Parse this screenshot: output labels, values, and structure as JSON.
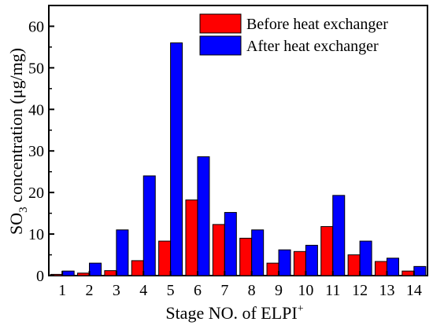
{
  "chart_data": {
    "type": "bar",
    "categories": [
      "1",
      "2",
      "3",
      "4",
      "5",
      "6",
      "7",
      "8",
      "9",
      "10",
      "11",
      "12",
      "13",
      "14"
    ],
    "series": [
      {
        "name": "Before heat exchanger",
        "color": "#ff0000",
        "values": [
          0.3,
          0.6,
          1.2,
          3.6,
          8.3,
          18.2,
          12.3,
          9.0,
          3.0,
          5.8,
          11.8,
          5.0,
          3.4,
          1.1
        ]
      },
      {
        "name": "After heat exchanger",
        "color": "#0000ff",
        "values": [
          1.1,
          3.0,
          11.0,
          24.0,
          56.0,
          28.6,
          15.2,
          11.0,
          6.2,
          7.3,
          19.3,
          8.3,
          4.2,
          2.2
        ]
      }
    ],
    "xlabel_main": "Stage NO. of ELPI",
    "xlabel_sup": "+",
    "ylabel_prefix": "SO",
    "ylabel_sub": "3",
    "ylabel_suffix": " concentration (μg/mg)",
    "ylim": [
      0,
      65
    ],
    "yticks": [
      "0",
      "10",
      "20",
      "30",
      "40",
      "50",
      "60"
    ],
    "ytick_values": [
      0,
      10,
      20,
      30,
      40,
      50,
      60
    ],
    "legend_position": "top-right",
    "grid": false
  }
}
